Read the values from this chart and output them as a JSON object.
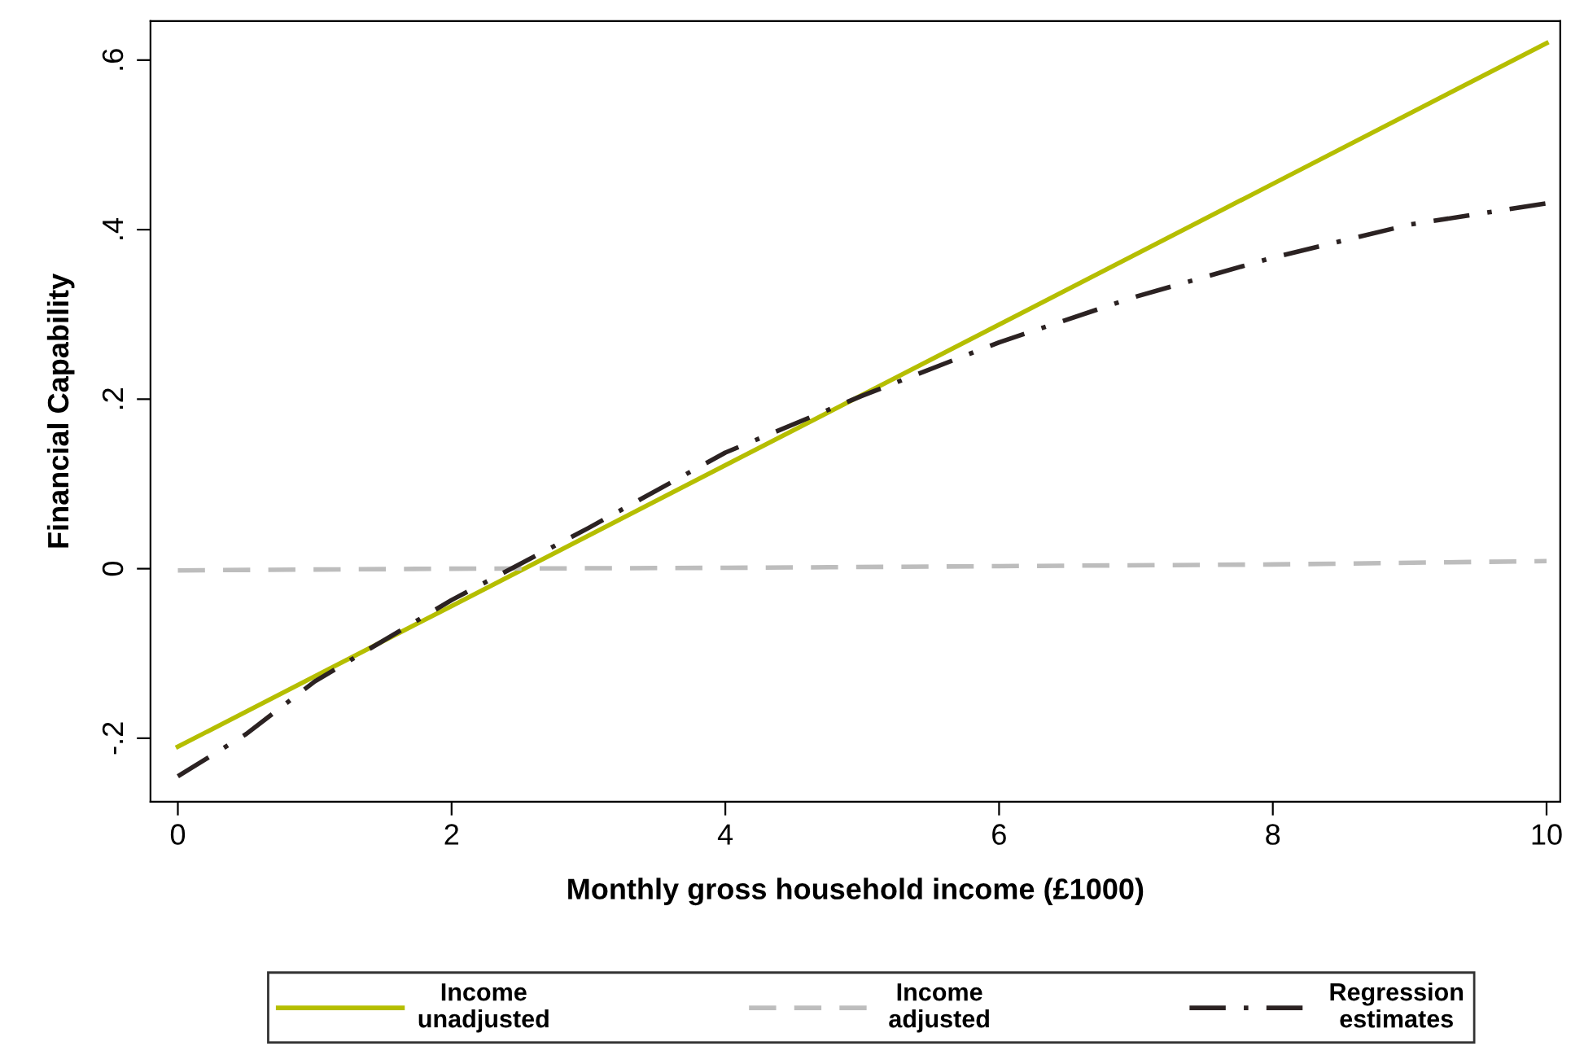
{
  "chart_data": {
    "type": "line",
    "xlabel": "Monthly gross household income (£1000)",
    "ylabel": "Financial Capability",
    "xlim": [
      -0.2,
      10.1
    ],
    "ylim": [
      -0.275,
      0.646
    ],
    "xticks": [
      0,
      2,
      4,
      6,
      8,
      10
    ],
    "yticks": [
      {
        "value": -0.2,
        "label": "-.2"
      },
      0,
      {
        "value": 0.2,
        "label": ".2"
      },
      {
        "value": 0.4,
        "label": ".4"
      },
      {
        "value": 0.6,
        "label": ".6"
      }
    ],
    "grid": false,
    "legend": "bottom",
    "marker": "none",
    "series": [
      {
        "name": "Income\nunadjusted",
        "color": "#b5be00",
        "line_style": "solid",
        "x": [
          0,
          2,
          4,
          6,
          8,
          10
        ],
        "values": [
          -0.21,
          -0.044,
          0.122,
          0.288,
          0.454,
          0.62
        ]
      },
      {
        "name": "Income\nadjusted",
        "color": "#bdbdbd",
        "line_style": "dashed",
        "x": [
          0,
          2,
          4,
          6,
          8,
          10
        ],
        "values": [
          -0.002,
          0.0,
          0.001,
          0.003,
          0.005,
          0.009
        ]
      },
      {
        "name": "Regression\nestimates",
        "color": "#2b2222",
        "line_style": "dashdot",
        "x": [
          0,
          0.5,
          1,
          2,
          3,
          4,
          5,
          6,
          7,
          8,
          9,
          10
        ],
        "values": [
          -0.245,
          -0.195,
          -0.133,
          -0.037,
          0.048,
          0.137,
          0.204,
          0.267,
          0.321,
          0.367,
          0.406,
          0.431
        ]
      }
    ]
  }
}
